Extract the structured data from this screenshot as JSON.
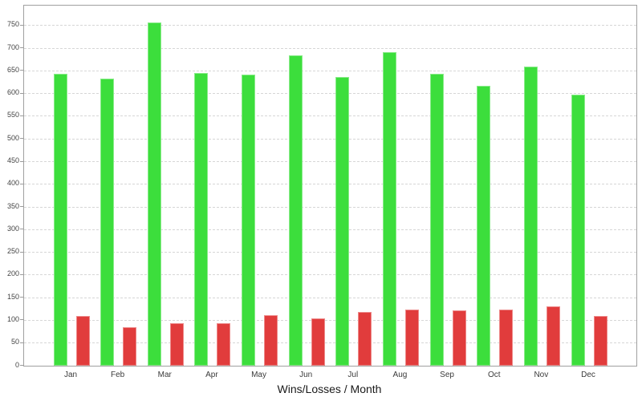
{
  "chart_data": {
    "type": "bar",
    "title": "Wins/Losses / Month",
    "title_position": "bottom",
    "categories": [
      "Jan",
      "Feb",
      "Mar",
      "Apr",
      "May",
      "Jun",
      "Jul",
      "Aug",
      "Sep",
      "Oct",
      "Nov",
      "Dec"
    ],
    "series": [
      {
        "name": "Wins",
        "color": "#3cde3c",
        "values": [
          643,
          633,
          757,
          645,
          642,
          684,
          636,
          691,
          643,
          618,
          659,
          598
        ]
      },
      {
        "name": "Losses",
        "color": "#e13c3c",
        "values": [
          110,
          84,
          93,
          94,
          112,
          105,
          119,
          124,
          122,
          124,
          131,
          109
        ]
      }
    ],
    "ylim": [
      0,
      794
    ],
    "yticks": [
      0,
      50,
      100,
      150,
      200,
      250,
      300,
      350,
      400,
      450,
      500,
      550,
      600,
      650,
      700,
      750
    ],
    "grid": "horizontal-dashed",
    "legend_position": "none"
  },
  "colors": {
    "background": "#ffffff",
    "plot_border": "#a0a0a0",
    "gridline": "#d6d6d6",
    "tick_label": "#444444",
    "title_text": "#1a1a1a"
  }
}
